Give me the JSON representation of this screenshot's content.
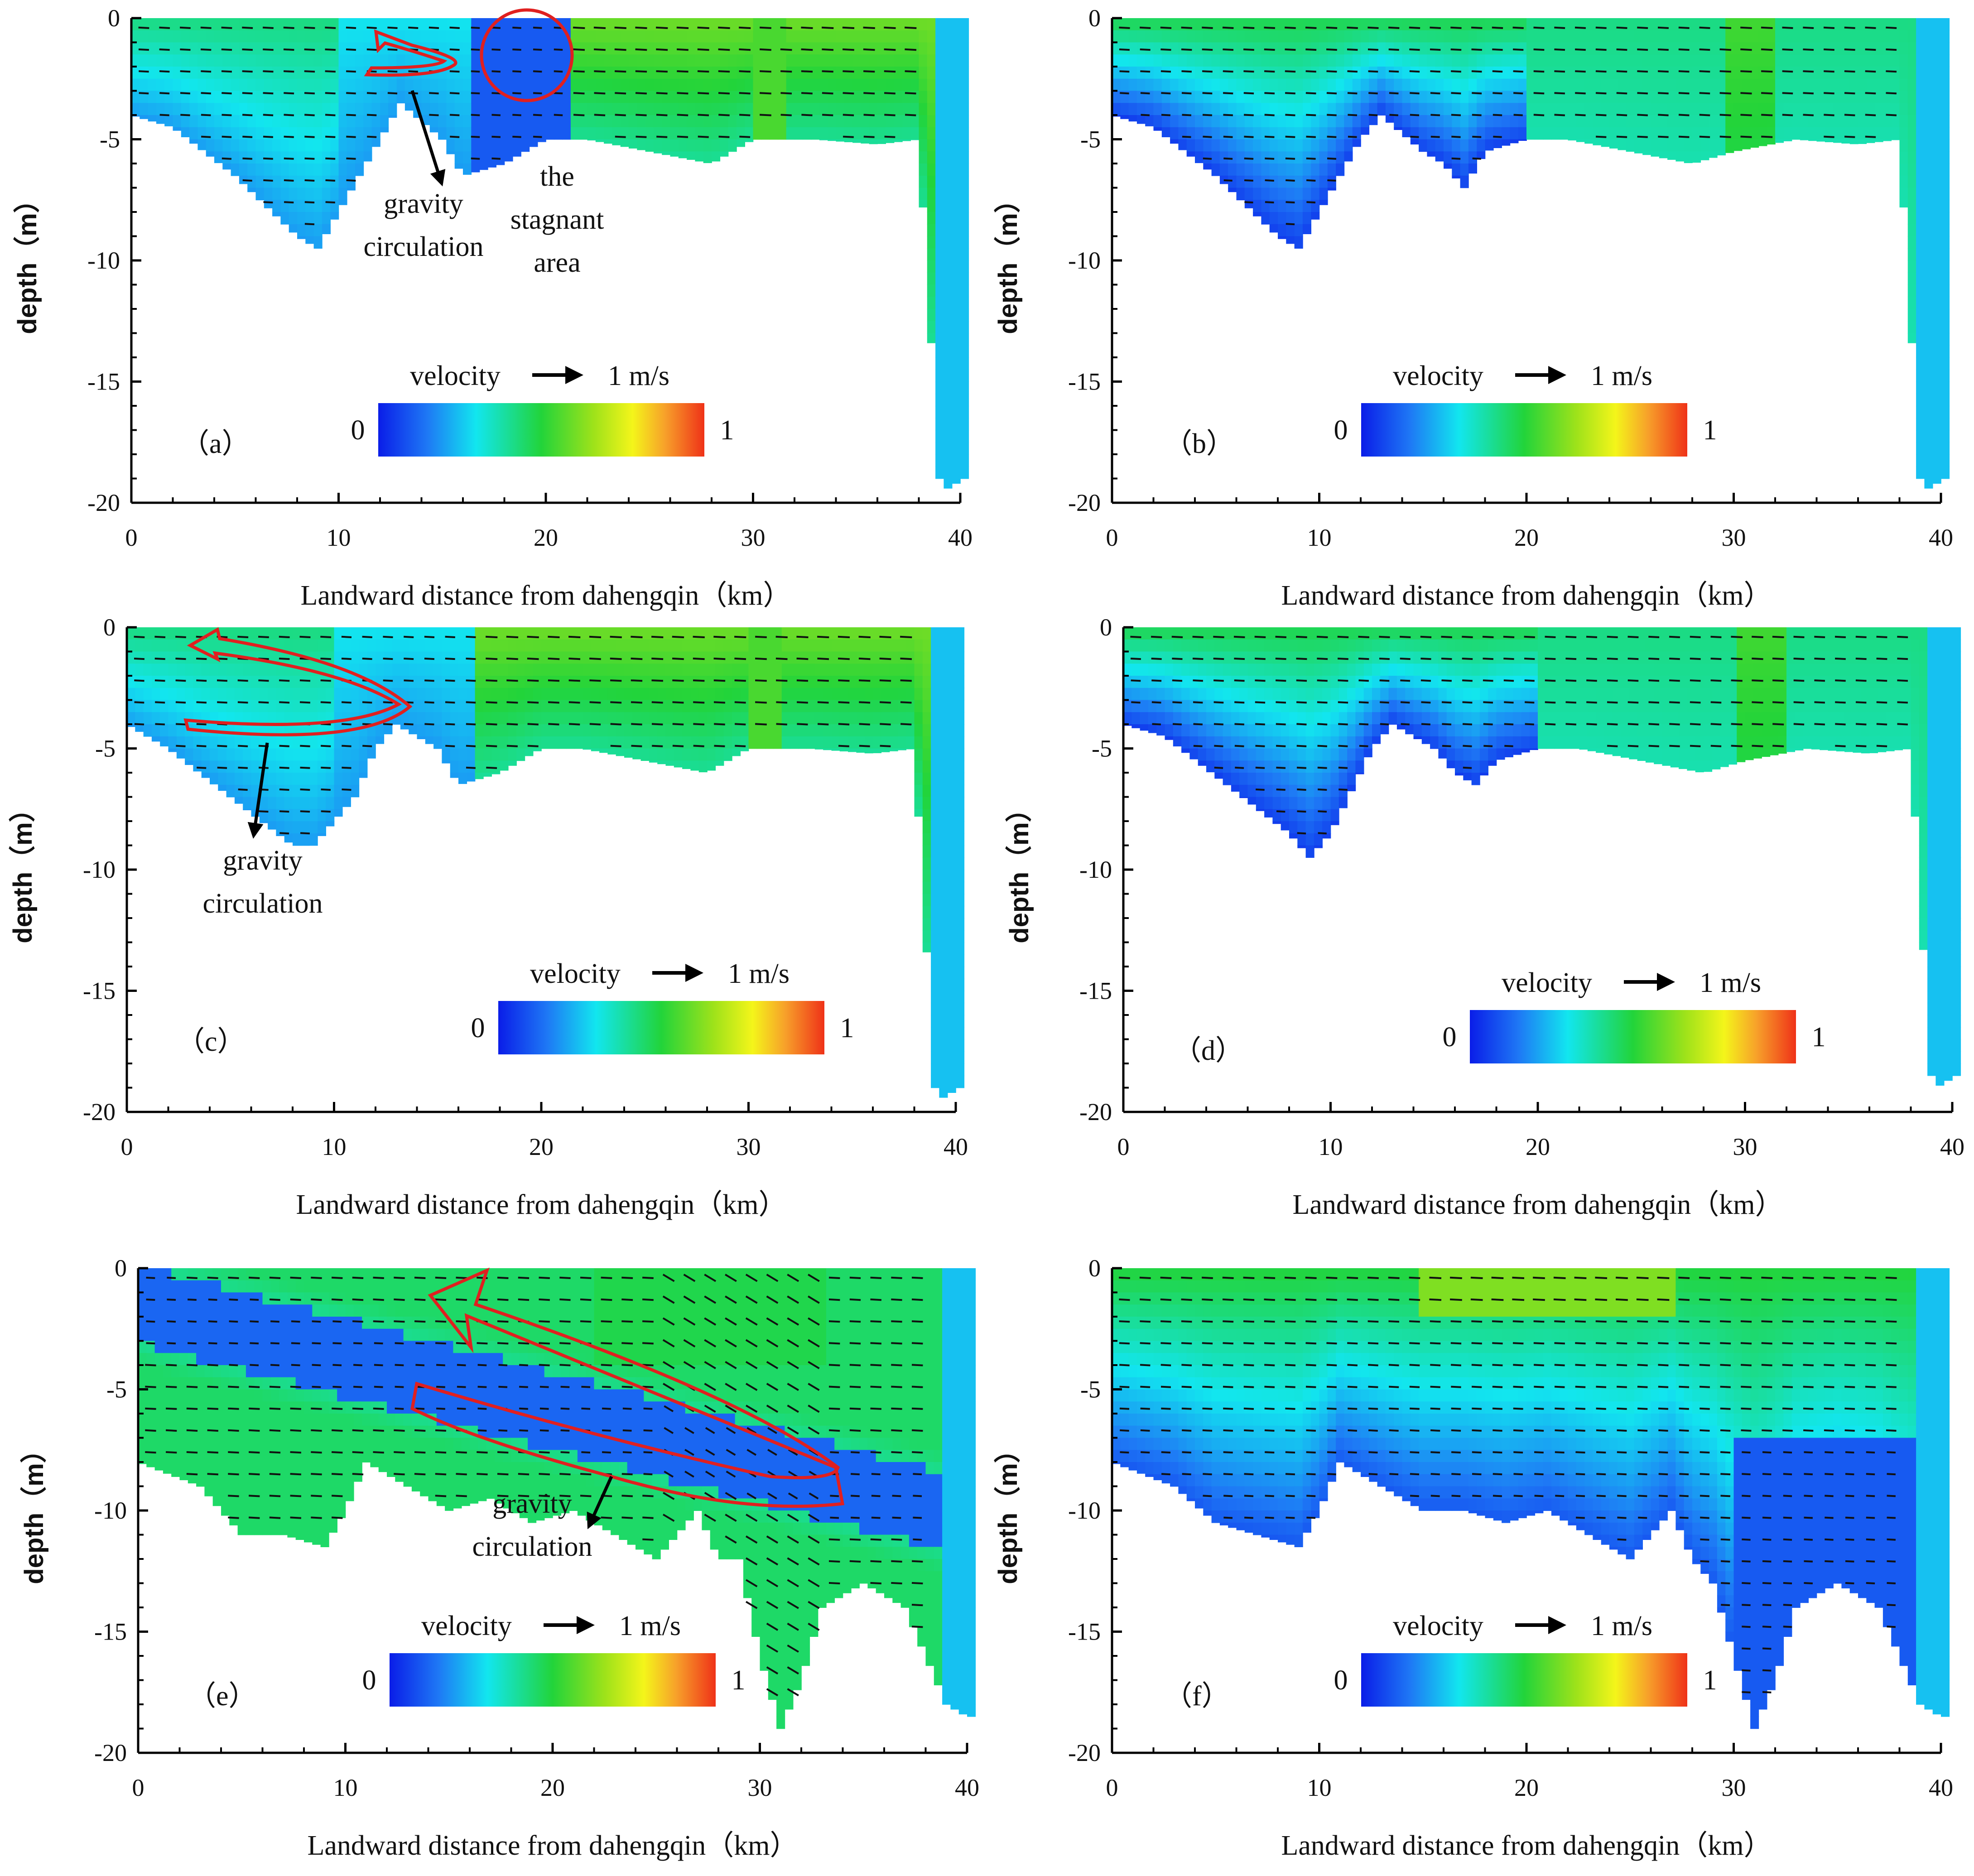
{
  "figure": {
    "common": {
      "xlabel": "Landward distance from dahengqin（km）",
      "ylabel": "depth（m）",
      "x_ticks": [
        "0",
        "10",
        "20",
        "30",
        "40"
      ],
      "y_ticks": [
        "0",
        "-5",
        "-10",
        "-15",
        "-20"
      ],
      "legend": {
        "title": "velocity",
        "arrow_label": "1 m/s",
        "min_label": "0",
        "max_label": "1"
      }
    },
    "annotations": {
      "gravity_line1": "gravity",
      "gravity_line2": "circulation",
      "stagnant_line1": "the",
      "stagnant_line2": "stagnant",
      "stagnant_line3": "area"
    }
  },
  "chart_data": [
    {
      "type": "heatmap",
      "panel_label": "（a）",
      "variable": "velocity (m/s)",
      "color_range": [
        0,
        1
      ],
      "xlabel": "Landward distance from dahengqin (km)",
      "ylabel": "depth (m)",
      "xlim": [
        0,
        40
      ],
      "ylim": [
        -20,
        0
      ],
      "bottom_profile": {
        "x": [
          0,
          2,
          5,
          8,
          9,
          10,
          12,
          13,
          15,
          16,
          18,
          20,
          22,
          25,
          28,
          30,
          33,
          36,
          38,
          38.5,
          39,
          39.5,
          40
        ],
        "depth": [
          -4,
          -4.5,
          -6.5,
          -9,
          -9.5,
          -8,
          -5,
          -3.5,
          -5,
          -6.5,
          -6,
          -5,
          -5,
          -5.5,
          -6,
          -5,
          -5,
          -5.2,
          -5,
          -12,
          -19,
          -19.5,
          -19
        ]
      },
      "annotations": [
        "gravity circulation",
        "the stagnant area"
      ]
    },
    {
      "type": "heatmap",
      "panel_label": "（b）",
      "variable": "velocity (m/s)",
      "color_range": [
        0,
        1
      ],
      "xlabel": "Landward distance from dahengqin (km)",
      "ylabel": "depth (m)",
      "xlim": [
        0,
        40
      ],
      "ylim": [
        -20,
        0
      ],
      "bottom_profile": {
        "x": [
          0,
          2,
          5,
          8,
          9,
          10,
          12,
          13,
          15,
          16,
          17,
          18,
          20,
          22,
          25,
          28,
          30,
          33,
          36,
          38,
          38.5,
          39,
          39.5,
          40
        ],
        "depth": [
          -4,
          -4.5,
          -6.5,
          -9,
          -9.5,
          -8,
          -5,
          -4,
          -5.5,
          -6,
          -7,
          -5.5,
          -5,
          -5,
          -5.5,
          -6,
          -5.5,
          -5,
          -5.2,
          -5,
          -12,
          -19,
          -19.5,
          -19
        ]
      },
      "annotations": []
    },
    {
      "type": "heatmap",
      "panel_label": "（c）",
      "variable": "velocity (m/s)",
      "color_range": [
        0,
        1
      ],
      "xlabel": "Landward distance from dahengqin (km)",
      "ylabel": "depth (m)",
      "xlim": [
        0,
        40
      ],
      "ylim": [
        -20,
        0
      ],
      "bottom_profile": {
        "x": [
          0,
          2,
          5,
          8,
          9,
          10,
          11,
          12,
          13,
          15,
          16,
          18,
          20,
          22,
          25,
          28,
          30,
          33,
          36,
          38,
          38.5,
          39,
          39.5,
          40
        ],
        "depth": [
          -4,
          -5,
          -7,
          -9,
          -9,
          -8,
          -7,
          -5,
          -4,
          -5,
          -6.5,
          -6,
          -5,
          -5,
          -5.5,
          -6,
          -5,
          -5,
          -5.2,
          -5,
          -12,
          -19,
          -19.5,
          -19
        ]
      },
      "annotations": [
        "gravity circulation"
      ]
    },
    {
      "type": "heatmap",
      "panel_label": "（d）",
      "variable": "velocity (m/s)",
      "color_range": [
        0,
        1
      ],
      "xlabel": "Landward distance from dahengqin (km)",
      "ylabel": "depth (m)",
      "xlim": [
        0,
        40
      ],
      "ylim": [
        -20,
        0
      ],
      "bottom_profile": {
        "x": [
          0,
          2,
          5,
          8,
          9,
          10,
          12,
          13,
          15,
          16,
          17,
          18,
          20,
          22,
          25,
          28,
          30,
          33,
          36,
          38,
          38.5,
          39,
          39.5,
          40
        ],
        "depth": [
          -4,
          -4.5,
          -6.5,
          -8.5,
          -9.5,
          -8.5,
          -5,
          -4,
          -5,
          -6,
          -6.5,
          -5.5,
          -5,
          -5,
          -5.5,
          -6,
          -5.5,
          -5,
          -5.2,
          -5,
          -12,
          -18.5,
          -19,
          -18.5
        ]
      },
      "annotations": []
    },
    {
      "type": "heatmap",
      "panel_label": "（e）",
      "variable": "velocity (m/s)",
      "color_range": [
        0,
        1
      ],
      "xlabel": "Landward distance from dahengqin (km)",
      "ylabel": "depth (m)",
      "xlim": [
        0,
        40
      ],
      "ylim": [
        -20,
        0
      ],
      "bottom_profile": {
        "x": [
          0,
          3,
          5,
          7,
          9,
          10,
          11,
          13,
          15,
          17,
          19,
          21,
          23,
          25,
          26,
          27,
          28,
          29,
          30,
          31,
          32,
          33,
          35,
          37,
          38,
          39,
          40
        ],
        "depth": [
          -8,
          -9,
          -11,
          -11,
          -11.5,
          -10,
          -8,
          -9,
          -10,
          -9.5,
          -10.5,
          -10,
          -11,
          -12,
          -11,
          -10,
          -12,
          -12,
          -16,
          -19,
          -17,
          -14,
          -13,
          -14,
          -16,
          -18,
          -18.5
        ]
      },
      "annotations": [
        "gravity circulation"
      ]
    },
    {
      "type": "heatmap",
      "panel_label": "（f）",
      "variable": "velocity (m/s)",
      "color_range": [
        0,
        1
      ],
      "xlabel": "Landward distance from dahengqin (km)",
      "ylabel": "depth (m)",
      "xlim": [
        0,
        40
      ],
      "ylim": [
        -20,
        0
      ],
      "bottom_profile": {
        "x": [
          0,
          3,
          5,
          7,
          9,
          10,
          11,
          13,
          15,
          17,
          19,
          21,
          23,
          25,
          26,
          27,
          28,
          29,
          30,
          31,
          32,
          33,
          35,
          37,
          38,
          39,
          40
        ],
        "depth": [
          -8,
          -9,
          -10.5,
          -11,
          -11.5,
          -10,
          -8,
          -9,
          -10,
          -10,
          -10.5,
          -10,
          -11,
          -12,
          -11,
          -10,
          -12,
          -13,
          -16,
          -19,
          -17,
          -14,
          -13,
          -14,
          -16,
          -18,
          -18.5
        ]
      },
      "annotations": []
    }
  ]
}
